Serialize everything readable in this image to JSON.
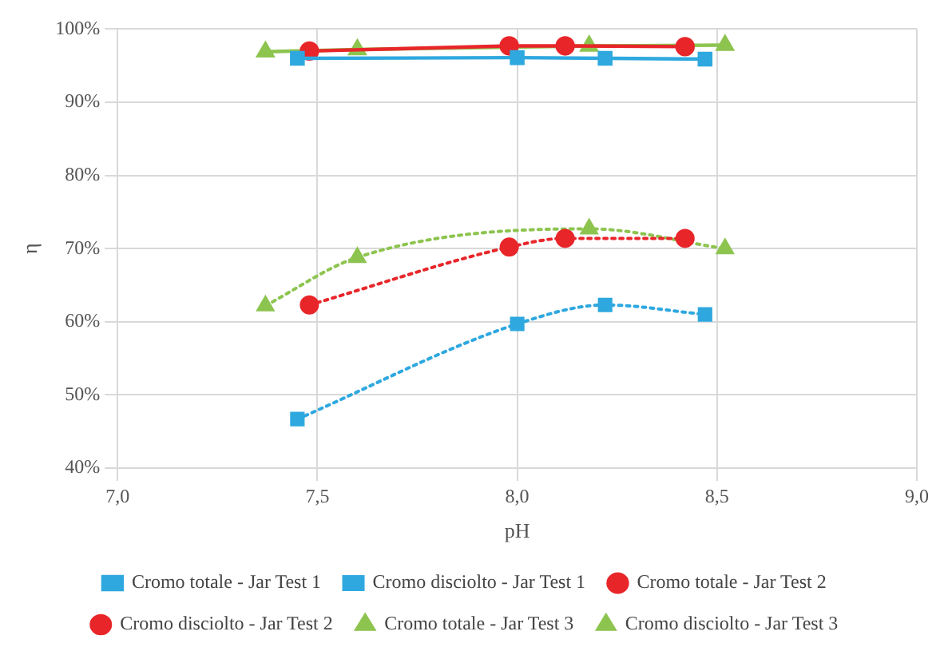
{
  "chart_data": {
    "type": "line",
    "xlabel": "pH",
    "ylabel": "η",
    "xlim": [
      7,
      9
    ],
    "xticks": [
      {
        "value": 7,
        "label": "7,0"
      },
      {
        "value": 7.5,
        "label": "7,5"
      },
      {
        "value": 8,
        "label": "8,0"
      },
      {
        "value": 8.5,
        "label": "8,5"
      },
      {
        "value": 9,
        "label": "9,0"
      }
    ],
    "ylim": [
      40,
      100
    ],
    "yticks": [
      {
        "value": 40,
        "label": "40%"
      },
      {
        "value": 50,
        "label": "50%"
      },
      {
        "value": 60,
        "label": "60%"
      },
      {
        "value": 70,
        "label": "70%"
      },
      {
        "value": 80,
        "label": "80%"
      },
      {
        "value": 90,
        "label": "90%"
      },
      {
        "value": 100,
        "label": "100%"
      }
    ],
    "grid": true,
    "legend": "bottom",
    "series": [
      {
        "name": "Cromo totale - Jar Test 1",
        "color": "#2ea8df",
        "marker": "square",
        "line_style": "solid",
        "x": [
          7.45,
          8.0,
          8.22,
          8.47
        ],
        "values": [
          96.0,
          96.1,
          96.0,
          95.9
        ]
      },
      {
        "name": "Cromo disciolto - Jar Test 1",
        "color": "#2ea8df",
        "marker": "square",
        "line_style": "dotted",
        "x": [
          7.45,
          8.0,
          8.22,
          8.47
        ],
        "values": [
          46.7,
          59.7,
          62.3,
          61.0
        ]
      },
      {
        "name": "Cromo totale - Jar Test 2",
        "color": "#e8262a",
        "marker": "circle",
        "line_style": "solid",
        "x": [
          7.48,
          7.98,
          8.12,
          8.42
        ],
        "values": [
          97.0,
          97.7,
          97.7,
          97.6
        ]
      },
      {
        "name": "Cromo disciolto - Jar Test 2",
        "color": "#e8262a",
        "marker": "circle",
        "line_style": "dotted",
        "x": [
          7.48,
          7.98,
          8.12,
          8.42
        ],
        "values": [
          62.3,
          70.2,
          71.4,
          71.4
        ]
      },
      {
        "name": "Cromo totale - Jar Test 3",
        "color": "#8dc44f",
        "marker": "triangle",
        "line_style": "solid",
        "x": [
          7.37,
          7.6,
          8.18,
          8.52
        ],
        "values": [
          96.9,
          97.2,
          97.7,
          97.8
        ]
      },
      {
        "name": "Cromo disciolto - Jar Test 3",
        "color": "#8dc44f",
        "marker": "triangle",
        "line_style": "dotted",
        "x": [
          7.37,
          7.6,
          8.18,
          8.52
        ],
        "values": [
          62.2,
          68.8,
          72.7,
          70.0
        ]
      }
    ]
  }
}
